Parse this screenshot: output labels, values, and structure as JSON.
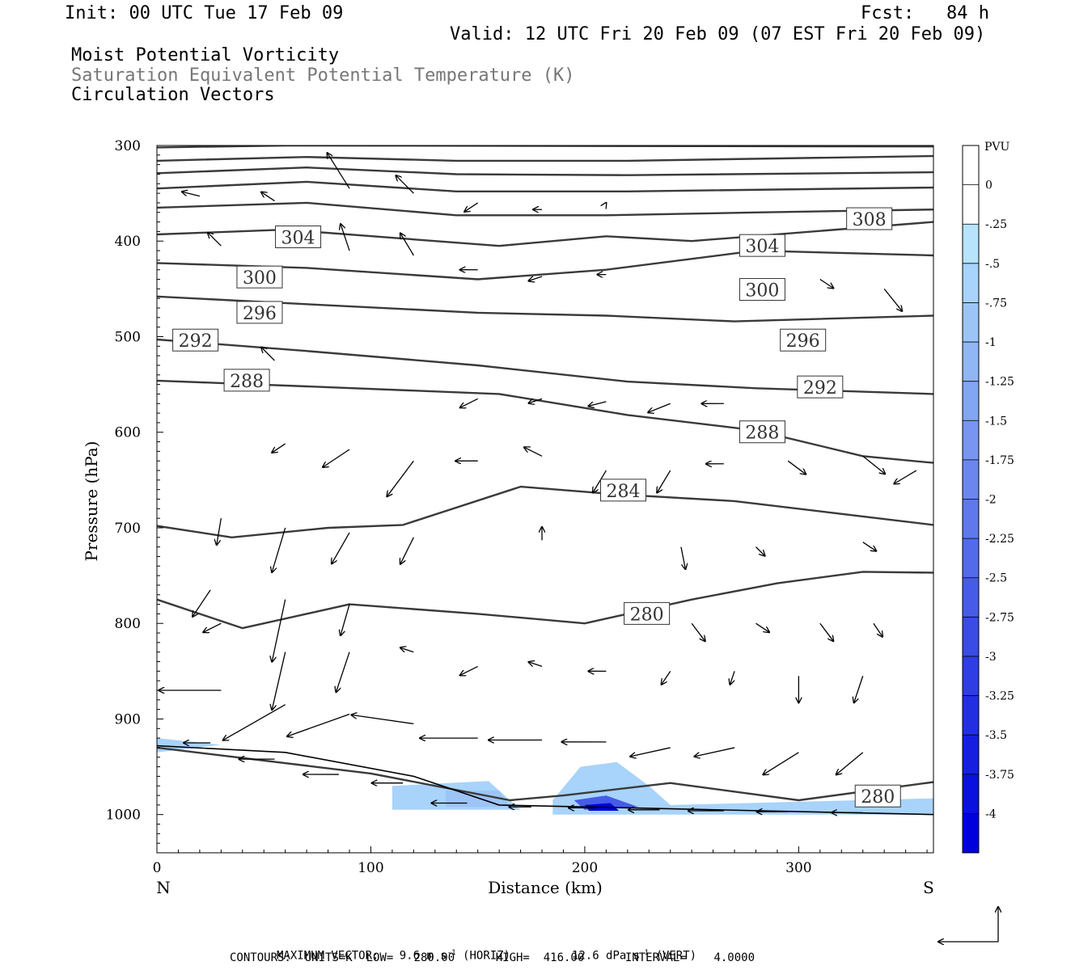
{
  "header": {
    "init": "Init: 00 UTC Tue 17 Feb 09",
    "fcst": "Fcst:   84 h",
    "valid": "Valid: 12 UTC Fri 20 Feb 09 (07 EST Fri 20 Feb 09)",
    "line1": "Moist Potential Vorticity",
    "line2": "Saturation Equivalent Potential Temperature (K)",
    "line3": "Circulation Vectors"
  },
  "footer": {
    "max_vector_label": "MAXIMUM VECTOR:",
    "max_vector_horiz": "9.6 m s",
    "max_vector_horiz_unit": "(HORIZ)",
    "max_vector_vert": "12.6 dPa s",
    "max_vector_vert_unit": "(VERT)",
    "exp": "-1",
    "contours": "CONTOURS:  UNITS=K  LOW=   280.00      HIGH=  416.00      INTERVAL=    4.0000"
  },
  "chart_data": {
    "type": "cross-section",
    "xlabel": "Distance (km)",
    "ylabel": "Pressure (hPa)",
    "xlim": [
      0,
      363
    ],
    "ylim": [
      1040,
      300
    ],
    "x_ticks": [
      "0",
      "100",
      "200",
      "300"
    ],
    "x_tick_values": [
      0,
      100,
      200,
      300
    ],
    "y_ticks": [
      "300",
      "400",
      "500",
      "600",
      "700",
      "800",
      "900",
      "1000"
    ],
    "y_tick_values": [
      300,
      400,
      500,
      600,
      700,
      800,
      900,
      1000
    ],
    "left_end_label": "N",
    "right_end_label": "S",
    "colorbar": {
      "title": "PVU",
      "labels": [
        "0",
        "-.25",
        "-.5",
        "-.75",
        "-1",
        "-1.25",
        "-1.5",
        "-1.75",
        "-2",
        "-2.25",
        "-2.5",
        "-2.75",
        "-3",
        "-3.25",
        "-3.5",
        "-3.75",
        "-4"
      ],
      "colors": [
        "#ffffff",
        "#ffffff",
        "#b7e3fb",
        "#a8d3fa",
        "#9cc4f7",
        "#90b6f5",
        "#83a6f3",
        "#7795f1",
        "#6b87ef",
        "#5f78ec",
        "#536aea",
        "#465be8",
        "#3a4be6",
        "#2e3de4",
        "#222ee2",
        "#161fe0",
        "#0a10de",
        "#0000dc"
      ]
    },
    "contours": [
      {
        "level": "",
        "points": [
          [
            0,
            302
          ],
          [
            60,
            300
          ],
          [
            363,
            301
          ]
        ]
      },
      {
        "level": "",
        "points": [
          [
            0,
            316
          ],
          [
            70,
            312
          ],
          [
            140,
            316
          ],
          [
            220,
            316
          ],
          [
            363,
            311
          ]
        ]
      },
      {
        "level": "",
        "points": [
          [
            0,
            329
          ],
          [
            70,
            323
          ],
          [
            140,
            330
          ],
          [
            220,
            331
          ],
          [
            363,
            328
          ]
        ]
      },
      {
        "level": "",
        "points": [
          [
            0,
            345
          ],
          [
            70,
            338
          ],
          [
            140,
            348
          ],
          [
            220,
            348
          ],
          [
            363,
            344
          ]
        ]
      },
      {
        "level": "",
        "points": [
          [
            0,
            365
          ],
          [
            70,
            360
          ],
          [
            140,
            373
          ],
          [
            210,
            373
          ],
          [
            280,
            370
          ],
          [
            363,
            367
          ]
        ]
      },
      {
        "level": "308",
        "label_at": [
          333,
          377
        ],
        "points": [
          [
            0,
            393
          ],
          [
            60,
            388
          ],
          [
            160,
            405
          ],
          [
            210,
            395
          ],
          [
            250,
            400
          ],
          [
            363,
            380
          ]
        ]
      },
      {
        "level": "304",
        "label_at": [
          66,
          396
        ],
        "label2_at": [
          283,
          405
        ],
        "points": [
          [
            0,
            423
          ],
          [
            70,
            428
          ],
          [
            150,
            440
          ],
          [
            210,
            430
          ],
          [
            280,
            410
          ],
          [
            363,
            415
          ]
        ]
      },
      {
        "level": "300",
        "label_at": [
          48,
          438
        ],
        "label2_at": [
          283,
          451
        ],
        "points": [
          [
            0,
            458
          ],
          [
            70,
            466
          ],
          [
            150,
            475
          ],
          [
            210,
            478
          ],
          [
            270,
            484
          ],
          [
            363,
            478
          ]
        ]
      },
      {
        "level": "296",
        "label_at": [
          48,
          475
        ],
        "label2_at": [
          302,
          504
        ],
        "points": [
          [
            0,
            503
          ],
          [
            70,
            515
          ],
          [
            150,
            530
          ],
          [
            220,
            547
          ],
          [
            280,
            554
          ],
          [
            363,
            560
          ]
        ]
      },
      {
        "level": "292",
        "label_at": [
          18,
          504
        ],
        "label2_at": [
          310,
          553
        ],
        "points": [
          [
            0,
            546
          ],
          [
            70,
            552
          ],
          [
            160,
            560
          ],
          [
            220,
            582
          ],
          [
            280,
            598
          ],
          [
            330,
            625
          ],
          [
            363,
            632
          ]
        ]
      },
      {
        "level": "288",
        "label_at": [
          42,
          546
        ],
        "label2_at": [
          283,
          600
        ],
        "points": [
          [
            0,
            698
          ],
          [
            35,
            710
          ],
          [
            80,
            700
          ],
          [
            115,
            697
          ],
          [
            170,
            657
          ],
          [
            215,
            665
          ],
          [
            270,
            672
          ],
          [
            363,
            697
          ]
        ]
      },
      {
        "level": "284",
        "label_at": [
          218,
          661
        ],
        "points": [
          [
            0,
            775
          ],
          [
            40,
            805
          ],
          [
            90,
            780
          ],
          [
            150,
            790
          ],
          [
            200,
            800
          ],
          [
            250,
            775
          ],
          [
            290,
            758
          ],
          [
            330,
            746
          ],
          [
            363,
            747
          ]
        ]
      },
      {
        "level": "280",
        "label_at": [
          229,
          790
        ],
        "points": [
          [
            0,
            930
          ],
          [
            100,
            957
          ],
          [
            165,
            985
          ],
          [
            190,
            980
          ],
          [
            240,
            967
          ],
          [
            300,
            985
          ],
          [
            363,
            966
          ]
        ]
      },
      {
        "level": "280",
        "label_at": [
          337,
          981
        ],
        "points": []
      }
    ],
    "terrain": [
      [
        0,
        928
      ],
      [
        60,
        935
      ],
      [
        120,
        960
      ],
      [
        160,
        990
      ],
      [
        363,
        1000
      ]
    ],
    "pv_shading": [
      {
        "value": -0.5,
        "points": [
          [
            0,
            920
          ],
          [
            30,
            927
          ],
          [
            0,
            935
          ]
        ]
      },
      {
        "value": -0.5,
        "points": [
          [
            110,
            970
          ],
          [
            155,
            965
          ],
          [
            170,
            995
          ],
          [
            110,
            995
          ]
        ]
      },
      {
        "value": -0.75,
        "points": [
          [
            135,
            975
          ],
          [
            160,
            975
          ],
          [
            165,
            992
          ],
          [
            135,
            992
          ]
        ]
      },
      {
        "value": -0.5,
        "points": [
          [
            185,
            985
          ],
          [
            198,
            950
          ],
          [
            215,
            945
          ],
          [
            230,
            970
          ],
          [
            240,
            990
          ],
          [
            363,
            983
          ],
          [
            363,
            1000
          ],
          [
            185,
            1000
          ]
        ]
      },
      {
        "value": -2.5,
        "points": [
          [
            195,
            985
          ],
          [
            210,
            980
          ],
          [
            225,
            992
          ],
          [
            200,
            995
          ]
        ]
      },
      {
        "value": -4.0,
        "points": [
          [
            200,
            990
          ],
          [
            212,
            988
          ],
          [
            216,
            996
          ],
          [
            202,
            996
          ]
        ]
      }
    ],
    "vectors": [
      {
        "x": 20,
        "p": 353,
        "u": -0.4,
        "w": -0.1
      },
      {
        "x": 55,
        "p": 358,
        "u": -0.3,
        "w": -0.2
      },
      {
        "x": 90,
        "p": 345,
        "u": -0.5,
        "w": -0.8
      },
      {
        "x": 120,
        "p": 350,
        "u": -0.4,
        "w": -0.4
      },
      {
        "x": 150,
        "p": 360,
        "u": -0.3,
        "w": 0.2
      },
      {
        "x": 180,
        "p": 367,
        "u": -0.2,
        "w": 0
      },
      {
        "x": 210,
        "p": 360,
        "u": 0,
        "w": 0
      },
      {
        "x": 30,
        "p": 405,
        "u": -0.3,
        "w": -0.3
      },
      {
        "x": 90,
        "p": 410,
        "u": -0.2,
        "w": -0.6
      },
      {
        "x": 120,
        "p": 415,
        "u": -0.3,
        "w": -0.5
      },
      {
        "x": 150,
        "p": 430,
        "u": -0.4,
        "w": 0
      },
      {
        "x": 180,
        "p": 437,
        "u": -0.3,
        "w": 0.1
      },
      {
        "x": 210,
        "p": 435,
        "u": -0.2,
        "w": 0
      },
      {
        "x": 340,
        "p": 450,
        "u": 0.4,
        "w": 0.5
      },
      {
        "x": 310,
        "p": 440,
        "u": 0.3,
        "w": 0.2
      },
      {
        "x": 55,
        "p": 525,
        "u": -0.3,
        "w": -0.3
      },
      {
        "x": 150,
        "p": 565,
        "u": -0.4,
        "w": 0.2
      },
      {
        "x": 180,
        "p": 565,
        "u": -0.3,
        "w": 0.1
      },
      {
        "x": 210,
        "p": 568,
        "u": -0.4,
        "w": 0.1
      },
      {
        "x": 240,
        "p": 570,
        "u": -0.5,
        "w": 0.2
      },
      {
        "x": 265,
        "p": 570,
        "u": -0.5,
        "w": 0
      },
      {
        "x": 60,
        "p": 612,
        "u": -0.3,
        "w": 0.2
      },
      {
        "x": 90,
        "p": 618,
        "u": -0.6,
        "w": 0.4
      },
      {
        "x": 120,
        "p": 630,
        "u": -0.6,
        "w": 0.8
      },
      {
        "x": 150,
        "p": 630,
        "u": -0.5,
        "w": 0
      },
      {
        "x": 180,
        "p": 625,
        "u": -0.4,
        "w": -0.2
      },
      {
        "x": 210,
        "p": 640,
        "u": -0.3,
        "w": 0.5
      },
      {
        "x": 240,
        "p": 640,
        "u": -0.3,
        "w": 0.5
      },
      {
        "x": 265,
        "p": 633,
        "u": -0.4,
        "w": 0
      },
      {
        "x": 295,
        "p": 630,
        "u": 0.4,
        "w": 0.3
      },
      {
        "x": 330,
        "p": 625,
        "u": 0.5,
        "w": 0.4
      },
      {
        "x": 355,
        "p": 640,
        "u": -0.5,
        "w": 0.3
      },
      {
        "x": 30,
        "p": 690,
        "u": -0.1,
        "w": 0.6
      },
      {
        "x": 60,
        "p": 700,
        "u": -0.3,
        "w": 1.0
      },
      {
        "x": 90,
        "p": 705,
        "u": -0.4,
        "w": 0.7
      },
      {
        "x": 120,
        "p": 710,
        "u": -0.3,
        "w": 0.6
      },
      {
        "x": 180,
        "p": 713,
        "u": 0,
        "w": -0.3
      },
      {
        "x": 245,
        "p": 720,
        "u": 0.1,
        "w": 0.5
      },
      {
        "x": 280,
        "p": 720,
        "u": 0.2,
        "w": 0.2
      },
      {
        "x": 330,
        "p": 715,
        "u": 0.3,
        "w": 0.2
      },
      {
        "x": 25,
        "p": 765,
        "u": -0.4,
        "w": 0.6
      },
      {
        "x": 60,
        "p": 775,
        "u": -0.3,
        "w": 1.4
      },
      {
        "x": 90,
        "p": 780,
        "u": -0.2,
        "w": 0.7
      },
      {
        "x": 30,
        "p": 800,
        "u": -0.4,
        "w": 0.2
      },
      {
        "x": 60,
        "p": 830,
        "u": -0.3,
        "w": 1.3
      },
      {
        "x": 90,
        "p": 830,
        "u": -0.3,
        "w": 0.9
      },
      {
        "x": 120,
        "p": 830,
        "u": -0.3,
        "w": -0.1
      },
      {
        "x": 150,
        "p": 845,
        "u": -0.4,
        "w": 0.2
      },
      {
        "x": 180,
        "p": 845,
        "u": -0.3,
        "w": -0.1
      },
      {
        "x": 210,
        "p": 850,
        "u": -0.4,
        "w": 0
      },
      {
        "x": 240,
        "p": 850,
        "u": -0.2,
        "w": 0.3
      },
      {
        "x": 270,
        "p": 850,
        "u": -0.1,
        "w": 0.3
      },
      {
        "x": 300,
        "p": 855,
        "u": 0,
        "w": 0.6
      },
      {
        "x": 330,
        "p": 855,
        "u": -0.2,
        "w": 0.6
      },
      {
        "x": 250,
        "p": 800,
        "u": 0.3,
        "w": 0.4
      },
      {
        "x": 280,
        "p": 800,
        "u": 0.3,
        "w": 0.2
      },
      {
        "x": 310,
        "p": 800,
        "u": 0.3,
        "w": 0.4
      },
      {
        "x": 335,
        "p": 800,
        "u": 0.2,
        "w": 0.3
      },
      {
        "x": 30,
        "p": 870,
        "u": -1.4,
        "w": 0
      },
      {
        "x": 60,
        "p": 885,
        "u": -1.4,
        "w": 0.8
      },
      {
        "x": 90,
        "p": 895,
        "u": -1.4,
        "w": 0.5
      },
      {
        "x": 120,
        "p": 905,
        "u": -1.4,
        "w": -0.2
      },
      {
        "x": 150,
        "p": 920,
        "u": -1.3,
        "w": 0
      },
      {
        "x": 180,
        "p": 922,
        "u": -1.2,
        "w": 0
      },
      {
        "x": 210,
        "p": 924,
        "u": -1.0,
        "w": 0
      },
      {
        "x": 240,
        "p": 930,
        "u": -0.9,
        "w": 0.2
      },
      {
        "x": 270,
        "p": 930,
        "u": -0.9,
        "w": 0.2
      },
      {
        "x": 300,
        "p": 935,
        "u": -0.8,
        "w": 0.5
      },
      {
        "x": 330,
        "p": 935,
        "u": -0.6,
        "w": 0.5
      },
      {
        "x": 25,
        "p": 925,
        "u": -0.6,
        "w": 0
      },
      {
        "x": 55,
        "p": 942,
        "u": -0.8,
        "w": 0
      },
      {
        "x": 85,
        "p": 958,
        "u": -0.8,
        "w": 0
      },
      {
        "x": 115,
        "p": 967,
        "u": -0.7,
        "w": 0
      },
      {
        "x": 145,
        "p": 988,
        "u": -0.8,
        "w": 0
      },
      {
        "x": 175,
        "p": 992,
        "u": -0.5,
        "w": 0
      },
      {
        "x": 205,
        "p": 993,
        "u": -0.6,
        "w": 0
      },
      {
        "x": 235,
        "p": 995,
        "u": -0.7,
        "w": 0
      },
      {
        "x": 265,
        "p": 996,
        "u": -0.8,
        "w": 0
      },
      {
        "x": 295,
        "p": 997,
        "u": -0.7,
        "w": 0
      },
      {
        "x": 330,
        "p": 998,
        "u": -0.7,
        "w": 0
      }
    ]
  }
}
